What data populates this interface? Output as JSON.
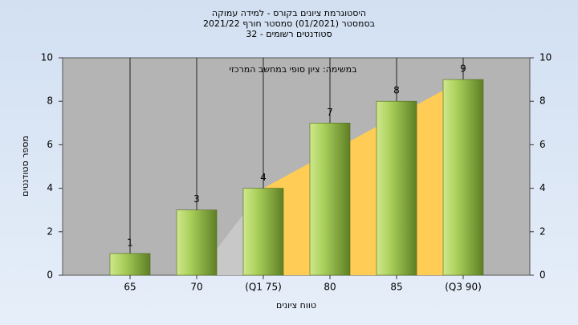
{
  "chart_data": {
    "type": "bar",
    "title": [
      "היסטוגרמת ציונים בקורס - למידה עמוקה",
      "בסמסטר  (01/2021)  סמסטר חורף 2021/22",
      "סטודנטים רשומים - 32"
    ],
    "annotation": "במשימה: ציון סופי במחשב המרכזי",
    "x_label": "טווח ציונים",
    "y_label": "מספר סטודנטים",
    "categories": [
      "65",
      "70",
      "(Q1 75)",
      "80",
      "85",
      "(Q3 90)"
    ],
    "values": [
      1,
      3,
      4,
      7,
      8,
      9
    ],
    "color": "#9cc34a",
    "ylim": [
      0,
      10
    ],
    "yticks": [
      0,
      2,
      4,
      6,
      8,
      10
    ],
    "y2lim": [
      0,
      10
    ],
    "y2ticks": [
      0,
      2,
      4,
      6,
      8,
      10
    ],
    "grid": true
  }
}
